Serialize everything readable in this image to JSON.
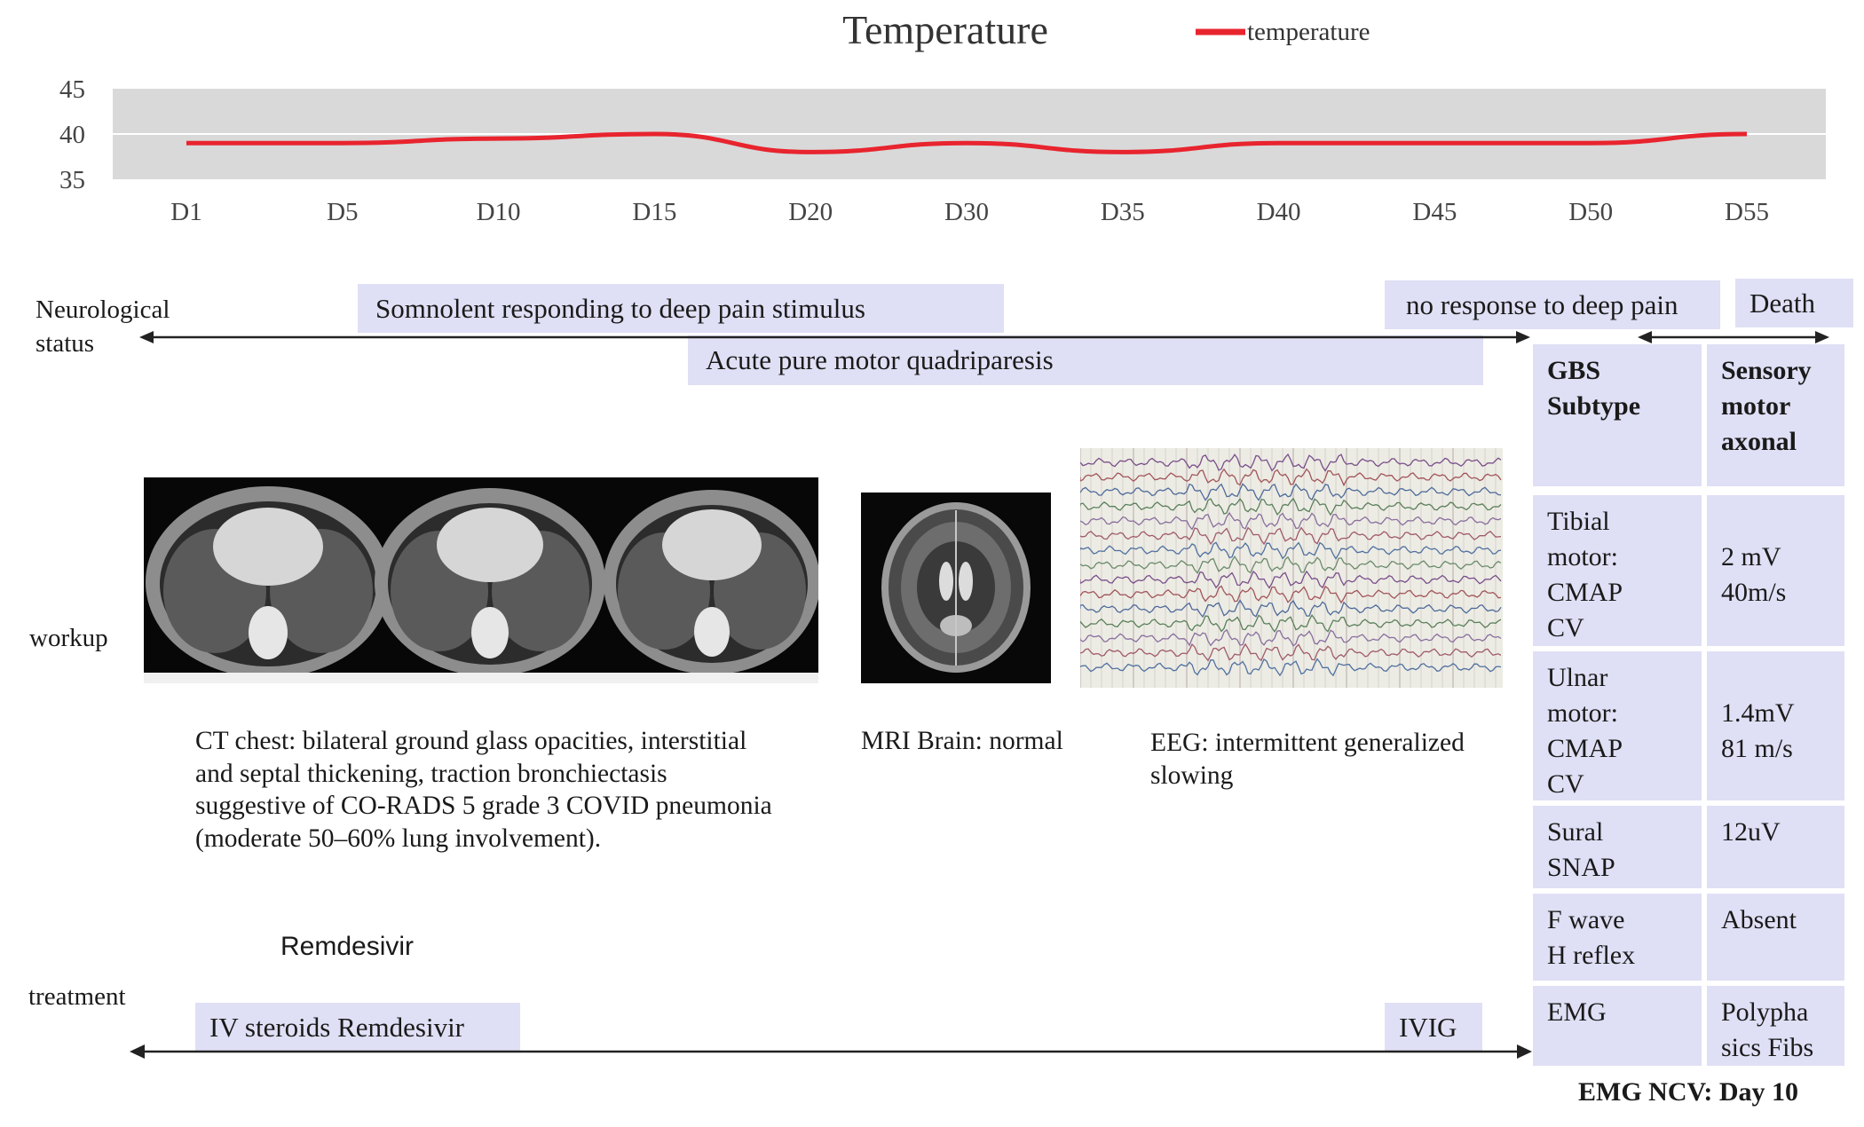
{
  "chart_data": {
    "type": "line",
    "title": "Temperature",
    "xlabel": "",
    "ylabel": "",
    "categories": [
      "D1",
      "D5",
      "D10",
      "D15",
      "D20",
      "D30",
      "D35",
      "D40",
      "D45",
      "D50",
      "D55"
    ],
    "series": [
      {
        "name": "temperature",
        "values": [
          39,
          39,
          39.5,
          40,
          38,
          39,
          38,
          39,
          39,
          39,
          40
        ],
        "color": "#e8242e"
      }
    ],
    "ylim": [
      35,
      45
    ],
    "yticks": [
      35,
      40,
      45
    ],
    "grid": true,
    "legend": "top-right",
    "plot_bg": "#d9d9d9"
  },
  "neuro": {
    "label": [
      "Neurological",
      "status"
    ],
    "somnolent": "Somnolent  responding  to  deep pain  stimulus",
    "no_response": "no  response  to  deep  pain",
    "death": "Death",
    "quadriparesis": "Acute  pure  motor  quadriparesis"
  },
  "workup": {
    "label": "workup",
    "ct_caption": [
      "CT chest: bilateral  ground glass  opacities,  interstitial",
      "and  septal  thickening, traction  bronchiectasis",
      "suggestive   of CO-RADS 5 grade 3 COVID pneumonia",
      "(moderate  50–60% lung  involvement)."
    ],
    "mri_caption": "MRI Brain:  normal",
    "eeg_caption": [
      "EEG:  intermittent   generalized",
      "slowing"
    ]
  },
  "treatment": {
    "label": "treatment",
    "remdesivir_label": "Remdesivir",
    "iv": "IV steroids Remdesivir",
    "ivig": "IVIG"
  },
  "emg_table": {
    "rows": [
      {
        "left": [
          "GBS",
          "Subtype"
        ],
        "right": [
          "Sensory",
          "motor",
          "axonal"
        ]
      },
      {
        "left": [
          "Tibial",
          "motor:",
          "CMAP",
          "CV"
        ],
        "right": [
          "",
          "2 mV",
          "40m/s"
        ]
      },
      {
        "left": [
          "Ulnar",
          "motor:",
          "CMAP",
          "CV"
        ],
        "right": [
          "",
          "1.4mV",
          "81 m/s"
        ]
      },
      {
        "left": [
          "Sural",
          "SNAP"
        ],
        "right": [
          "12uV"
        ]
      },
      {
        "left": [
          "F wave",
          "H reflex"
        ],
        "right": [
          "Absent"
        ]
      },
      {
        "left": [
          "EMG"
        ],
        "right": [
          "Polypha",
          "sics Fibs"
        ]
      }
    ],
    "footer": "EMG NCV:  Day 10"
  },
  "colors": {
    "box": "#dfdff5",
    "line": "#e8242e",
    "plot_bg": "#d9d9d9"
  }
}
